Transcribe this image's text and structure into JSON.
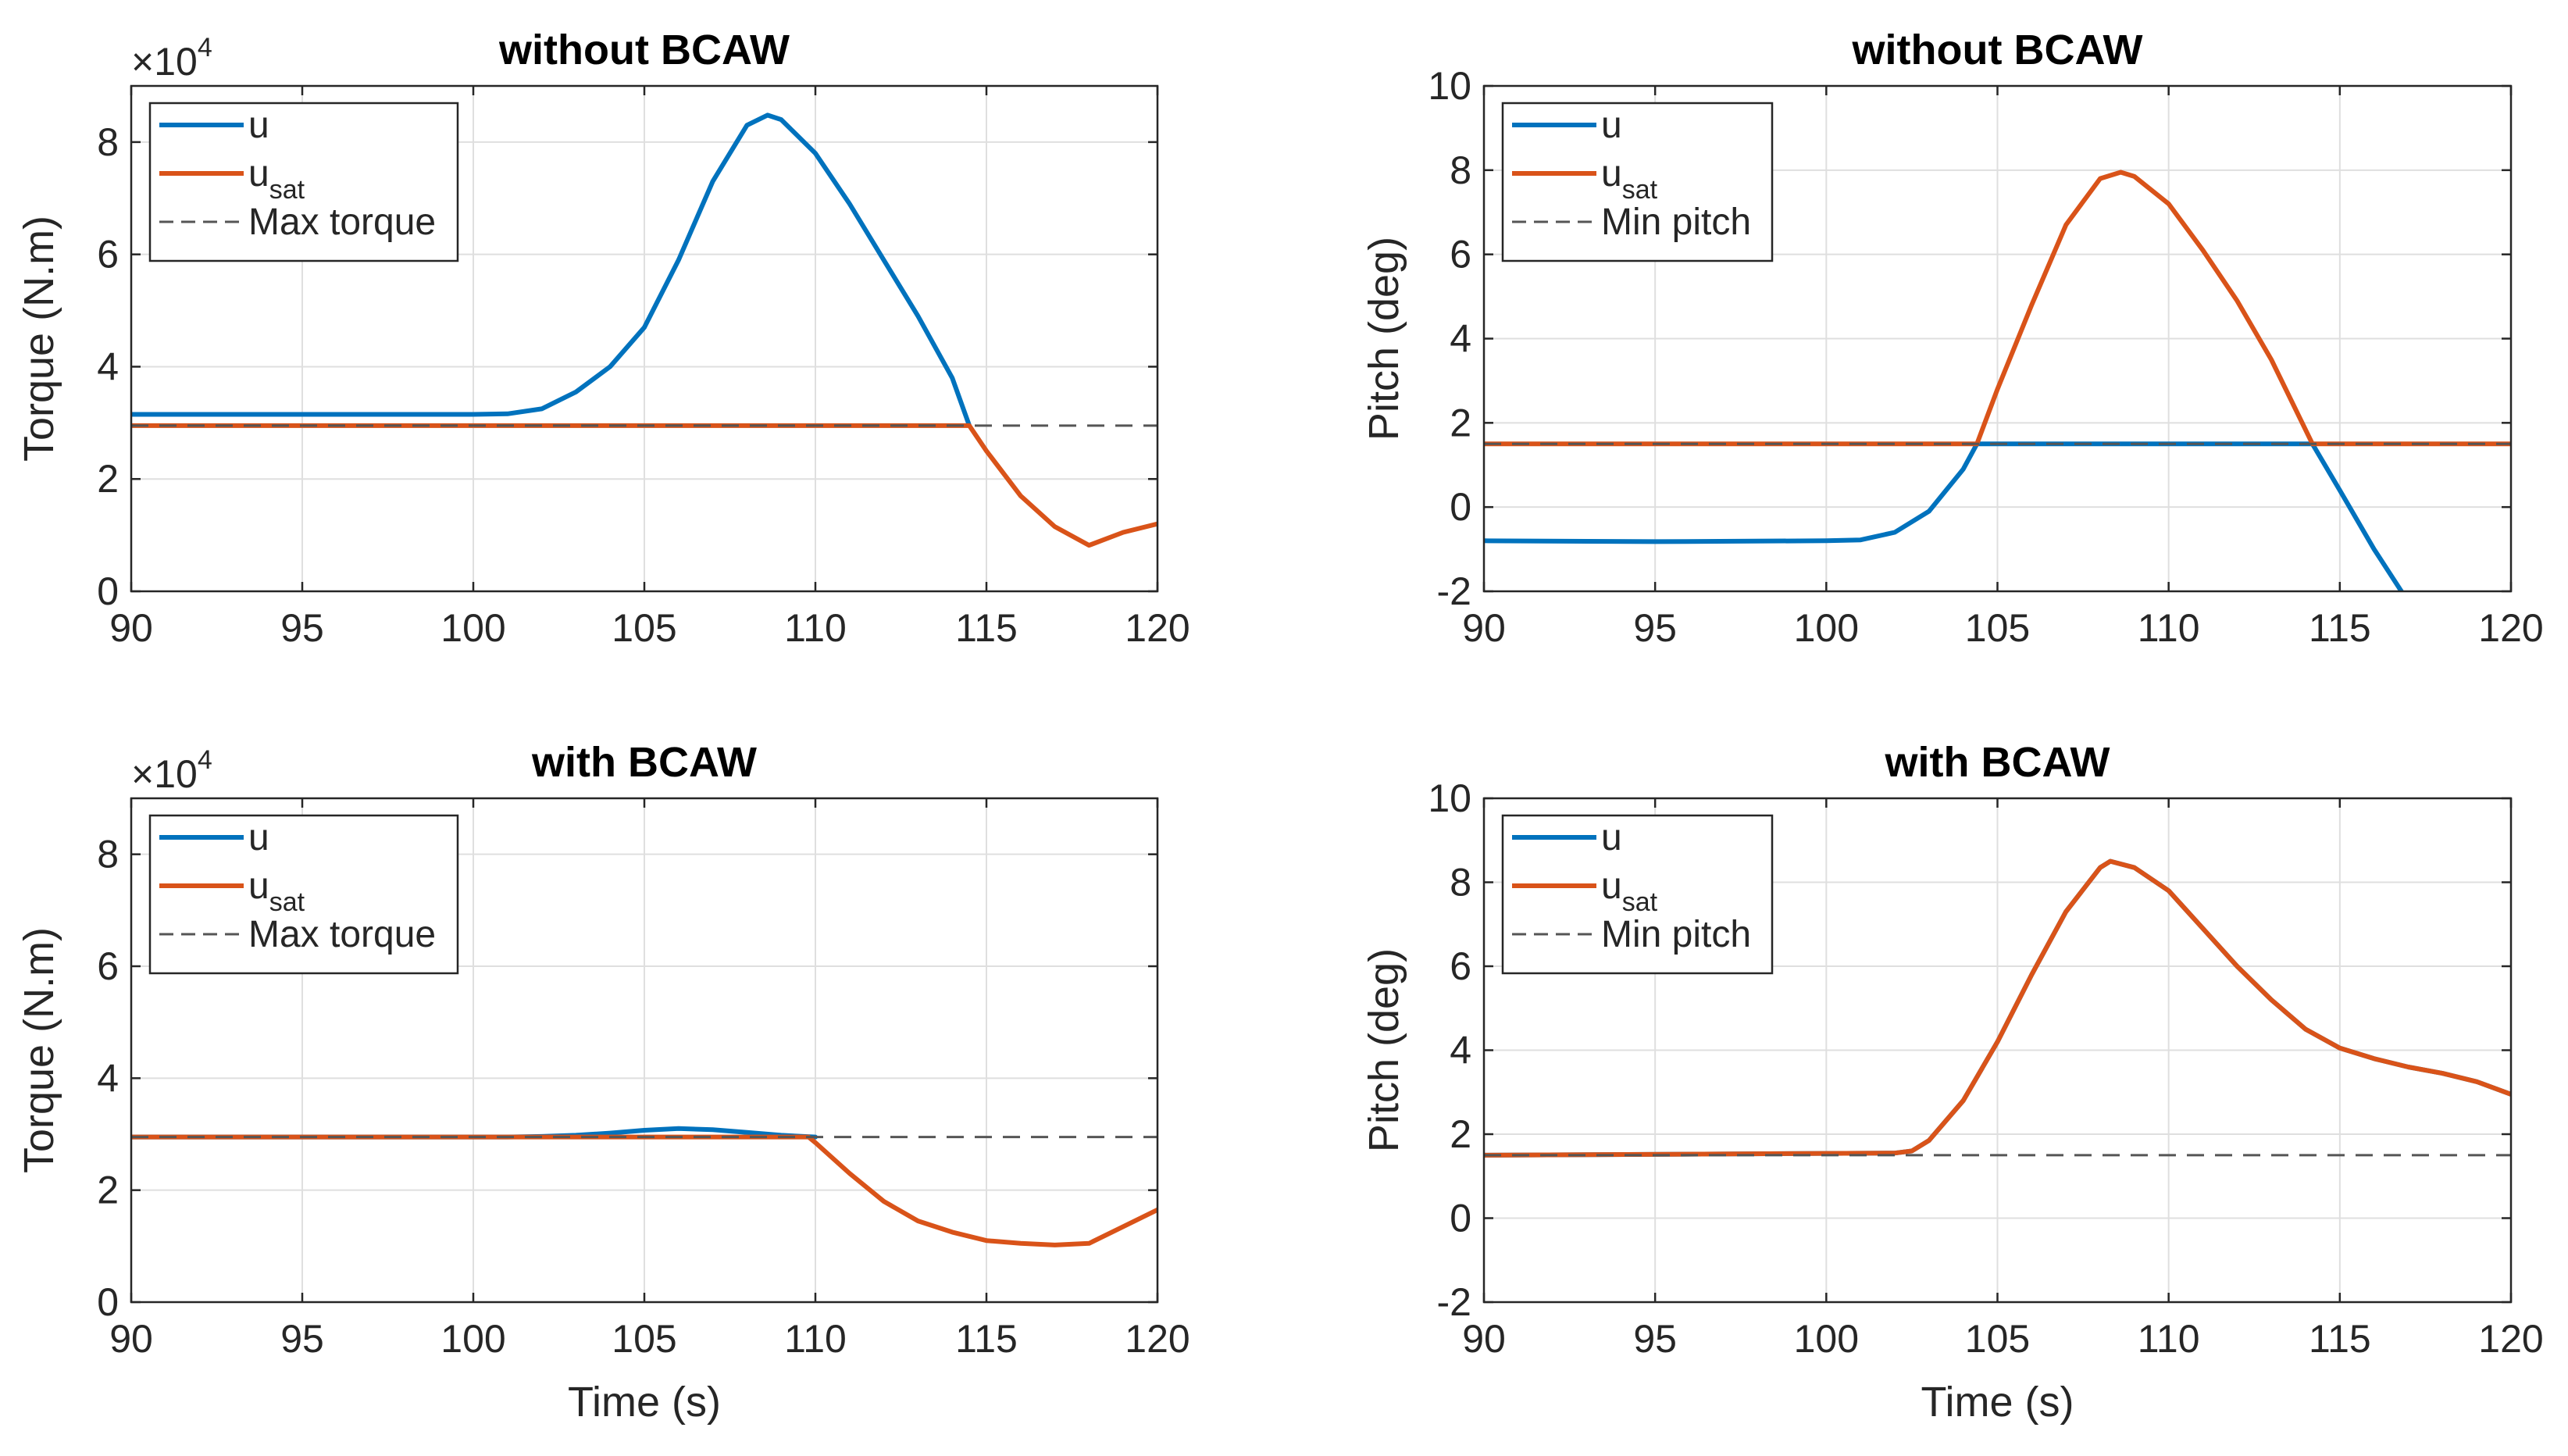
{
  "colors": {
    "u": "#0072BD",
    "u_sat": "#D95319",
    "limit": "#555555"
  },
  "shared": {
    "xlabel": "Time (s)"
  },
  "chart_data": [
    {
      "id": "tl",
      "type": "line",
      "title": "without BCAW",
      "xlabel": "",
      "ylabel": "Torque (N.m)",
      "exponent_base": "×10",
      "exponent_power": "4",
      "xlim": [
        90,
        120
      ],
      "ylim": [
        0,
        9
      ],
      "xticks": [
        90,
        95,
        100,
        105,
        110,
        115,
        120
      ],
      "yticks": [
        0,
        2,
        4,
        6,
        8
      ],
      "legend": {
        "position": "top-left",
        "entries": [
          {
            "label": "u",
            "sub": ""
          },
          {
            "label": "u",
            "sub": "sat"
          },
          {
            "label": "Max torque",
            "sub": ""
          }
        ]
      },
      "series": [
        {
          "name": "u",
          "x": [
            90,
            100,
            101,
            102,
            103,
            104,
            105,
            106,
            107,
            108,
            108.6,
            109,
            110,
            111,
            112,
            113,
            114,
            114.5
          ],
          "y": [
            3.15,
            3.15,
            3.16,
            3.25,
            3.55,
            4.0,
            4.7,
            5.9,
            7.3,
            8.3,
            8.48,
            8.4,
            7.8,
            6.9,
            5.9,
            4.9,
            3.8,
            2.95
          ]
        },
        {
          "name": "u_sat",
          "x": [
            90,
            114.5,
            115,
            116,
            117,
            118,
            119,
            120
          ],
          "y": [
            2.95,
            2.95,
            2.5,
            1.7,
            1.15,
            0.82,
            1.05,
            1.2
          ]
        },
        {
          "name": "limit",
          "x": [
            90,
            120
          ],
          "y": [
            2.95,
            2.95
          ]
        }
      ]
    },
    {
      "id": "tr",
      "type": "line",
      "title": "without BCAW",
      "xlabel": "",
      "ylabel": "Pitch (deg)",
      "xlim": [
        90,
        120
      ],
      "ylim": [
        -2,
        10
      ],
      "xticks": [
        90,
        95,
        100,
        105,
        110,
        115,
        120
      ],
      "yticks": [
        -2,
        0,
        2,
        4,
        6,
        8,
        10
      ],
      "legend": {
        "position": "top-left",
        "entries": [
          {
            "label": "u",
            "sub": ""
          },
          {
            "label": "u",
            "sub": "sat"
          },
          {
            "label": "Min pitch",
            "sub": ""
          }
        ]
      },
      "series": [
        {
          "name": "u",
          "x": [
            90,
            95,
            100,
            101,
            102,
            103,
            104,
            104.4,
            114.2,
            115,
            116,
            116.8
          ],
          "y": [
            -0.8,
            -0.82,
            -0.8,
            -0.78,
            -0.6,
            -0.1,
            0.9,
            1.5,
            1.5,
            0.4,
            -1.0,
            -2.0
          ]
        },
        {
          "name": "u_sat",
          "x": [
            90,
            104.4,
            105,
            106,
            107,
            108,
            108.6,
            109,
            110,
            111,
            112,
            113,
            114.2,
            120
          ],
          "y": [
            1.5,
            1.5,
            2.8,
            4.8,
            6.7,
            7.8,
            7.95,
            7.85,
            7.2,
            6.1,
            4.9,
            3.5,
            1.5,
            1.5
          ]
        },
        {
          "name": "limit",
          "x": [
            90,
            120
          ],
          "y": [
            1.5,
            1.5
          ]
        }
      ]
    },
    {
      "id": "bl",
      "type": "line",
      "title": "with BCAW",
      "xlabel": "Time (s)",
      "ylabel": "Torque (N.m)",
      "exponent_base": "×10",
      "exponent_power": "4",
      "xlim": [
        90,
        120
      ],
      "ylim": [
        0,
        9
      ],
      "xticks": [
        90,
        95,
        100,
        105,
        110,
        115,
        120
      ],
      "yticks": [
        0,
        2,
        4,
        6,
        8
      ],
      "legend": {
        "position": "top-left",
        "entries": [
          {
            "label": "u",
            "sub": ""
          },
          {
            "label": "u",
            "sub": "sat"
          },
          {
            "label": "Max torque",
            "sub": ""
          }
        ]
      },
      "series": [
        {
          "name": "u",
          "x": [
            90,
            101,
            102,
            103,
            104,
            105,
            106,
            107,
            108,
            109,
            110
          ],
          "y": [
            2.95,
            2.95,
            2.96,
            2.98,
            3.02,
            3.07,
            3.1,
            3.08,
            3.03,
            2.98,
            2.95
          ]
        },
        {
          "name": "u_sat",
          "x": [
            90,
            109.8,
            110,
            111,
            112,
            113,
            114,
            115,
            116,
            117,
            118,
            119,
            120
          ],
          "y": [
            2.95,
            2.95,
            2.85,
            2.3,
            1.8,
            1.45,
            1.25,
            1.1,
            1.05,
            1.02,
            1.05,
            1.35,
            1.65
          ]
        },
        {
          "name": "limit",
          "x": [
            90,
            120
          ],
          "y": [
            2.95,
            2.95
          ]
        }
      ]
    },
    {
      "id": "br",
      "type": "line",
      "title": "with BCAW",
      "xlabel": "Time (s)",
      "ylabel": "Pitch (deg)",
      "xlim": [
        90,
        120
      ],
      "ylim": [
        -2,
        10
      ],
      "xticks": [
        90,
        95,
        100,
        105,
        110,
        115,
        120
      ],
      "yticks": [
        -2,
        0,
        2,
        4,
        6,
        8,
        10
      ],
      "legend": {
        "position": "top-left",
        "entries": [
          {
            "label": "u",
            "sub": ""
          },
          {
            "label": "u",
            "sub": "sat"
          },
          {
            "label": "Min pitch",
            "sub": ""
          }
        ]
      },
      "series": [
        {
          "name": "u",
          "x": [
            90,
            102,
            102.5,
            103,
            104,
            105,
            106,
            107,
            108,
            108.3,
            109,
            110,
            111,
            112,
            113,
            114,
            115,
            116,
            117,
            118,
            119,
            120
          ],
          "y": [
            1.5,
            1.55,
            1.6,
            1.85,
            2.8,
            4.2,
            5.8,
            7.3,
            8.35,
            8.5,
            8.35,
            7.8,
            6.9,
            6.0,
            5.2,
            4.5,
            4.05,
            3.8,
            3.6,
            3.45,
            3.25,
            2.95
          ]
        },
        {
          "name": "u_sat",
          "x": [
            90,
            102,
            102.5,
            103,
            104,
            105,
            106,
            107,
            108,
            108.3,
            109,
            110,
            111,
            112,
            113,
            114,
            115,
            116,
            117,
            118,
            119,
            120
          ],
          "y": [
            1.5,
            1.55,
            1.6,
            1.85,
            2.8,
            4.2,
            5.8,
            7.3,
            8.35,
            8.5,
            8.35,
            7.8,
            6.9,
            6.0,
            5.2,
            4.5,
            4.05,
            3.8,
            3.6,
            3.45,
            3.25,
            2.95
          ]
        },
        {
          "name": "limit",
          "x": [
            90,
            120
          ],
          "y": [
            1.5,
            1.5
          ]
        }
      ]
    }
  ]
}
